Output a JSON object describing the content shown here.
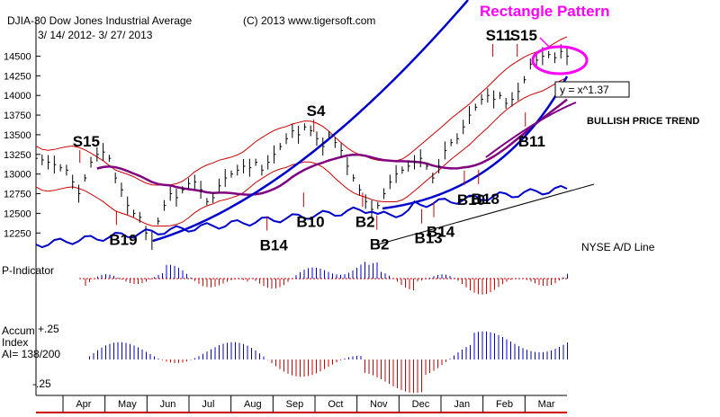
{
  "chart_data": {
    "type": "line",
    "title": "DJIA-30  Dow Jones Industrial Average",
    "date_range": "3/ 14/ 2012- 3/ 27/ 2013",
    "copyright": "(C) 2013 www.tigersoft.com",
    "annotation_title": "Rectangle Pattern",
    "formula": "y = x^1.37",
    "trend_label": "BULLISH PRICE TREND",
    "ad_label": "NYSE A/D Line",
    "p_indicator_label": "P-Indicator",
    "accum_label_1": "Accum",
    "accum_label_2": "Index",
    "accum_label_3": "AI= 138/200",
    "accum_ticks": [
      "+.25",
      "-.25"
    ],
    "months": [
      "Apr",
      "May",
      "Jun",
      "Jul",
      "Aug",
      "Sep",
      "Oct",
      "Nov",
      "Dec",
      "Jan",
      "Feb",
      "Mar"
    ],
    "y_ticks": [
      12250,
      12500,
      12750,
      13000,
      13250,
      13500,
      13750,
      14000,
      14250,
      14500
    ],
    "ylim": [
      12150,
      14620
    ],
    "price_series": {
      "name": "DJIA close",
      "x": [
        0,
        3,
        6,
        9,
        12,
        15,
        18,
        21,
        24,
        27,
        30,
        33,
        36,
        39,
        42,
        45,
        48,
        51,
        54,
        57,
        60,
        63,
        66,
        69,
        72,
        75,
        78,
        81,
        84,
        87,
        90,
        93,
        96,
        99,
        102,
        105,
        108,
        111,
        114,
        117,
        120,
        123,
        126,
        129,
        132,
        135,
        138,
        141,
        144,
        147,
        150,
        153,
        156,
        159,
        162,
        165,
        168,
        171,
        174,
        177,
        180,
        183,
        186,
        189,
        192,
        195,
        198,
        201,
        204,
        207,
        210,
        213,
        216,
        219,
        222,
        225,
        228,
        231,
        234,
        237,
        240,
        243,
        246,
        249,
        252,
        255,
        258,
        261
      ],
      "values": [
        13200,
        13180,
        13150,
        13120,
        13080,
        13050,
        12900,
        12750,
        12950,
        13150,
        13250,
        13280,
        13200,
        12950,
        12800,
        12600,
        12500,
        12450,
        12250,
        12150,
        12400,
        12600,
        12750,
        12700,
        12800,
        12880,
        12900,
        12800,
        12650,
        12700,
        12850,
        12950,
        13000,
        13050,
        13100,
        13080,
        13150,
        13050,
        13150,
        13250,
        13350,
        13450,
        13550,
        13500,
        13600,
        13550,
        13450,
        13350,
        13500,
        13400,
        13300,
        13100,
        12950,
        12800,
        12650,
        12550,
        12600,
        12750,
        12900,
        13000,
        13050,
        13100,
        13150,
        13200,
        13100,
        12950,
        13100,
        13300,
        13400,
        13450,
        13600,
        13750,
        13850,
        13950,
        14000,
        13950,
        14000,
        13900,
        13950,
        14050,
        14200,
        14400,
        14450,
        14500,
        14520,
        14480,
        14560,
        14500
      ]
    },
    "signals": [
      {
        "label": "S15",
        "x": 18,
        "y": 13350,
        "kind": "sell"
      },
      {
        "label": "B19",
        "x": 36,
        "y": 12100,
        "kind": "buy"
      },
      {
        "label": "B14",
        "x": 110,
        "y": 12030,
        "kind": "buy"
      },
      {
        "label": "S4",
        "x": 133,
        "y": 13740,
        "kind": "sell"
      },
      {
        "label": "B10",
        "x": 128,
        "y": 12330,
        "kind": "buy"
      },
      {
        "label": "B2",
        "x": 157,
        "y": 12330,
        "kind": "buy"
      },
      {
        "label": "B2",
        "x": 164,
        "y": 12040,
        "kind": "buy"
      },
      {
        "label": "B13",
        "x": 186,
        "y": 12120,
        "kind": "buy"
      },
      {
        "label": "B14",
        "x": 192,
        "y": 12200,
        "kind": "buy"
      },
      {
        "label": "B10",
        "x": 207,
        "y": 12610,
        "kind": "buy"
      },
      {
        "label": "B18",
        "x": 214,
        "y": 12620,
        "kind": "buy"
      },
      {
        "label": "S11",
        "x": 221,
        "y": 14700,
        "kind": "sell"
      },
      {
        "label": "S15",
        "x": 233,
        "y": 14700,
        "kind": "sell"
      },
      {
        "label": "B11",
        "x": 237,
        "y": 13350,
        "kind": "buy"
      }
    ]
  }
}
